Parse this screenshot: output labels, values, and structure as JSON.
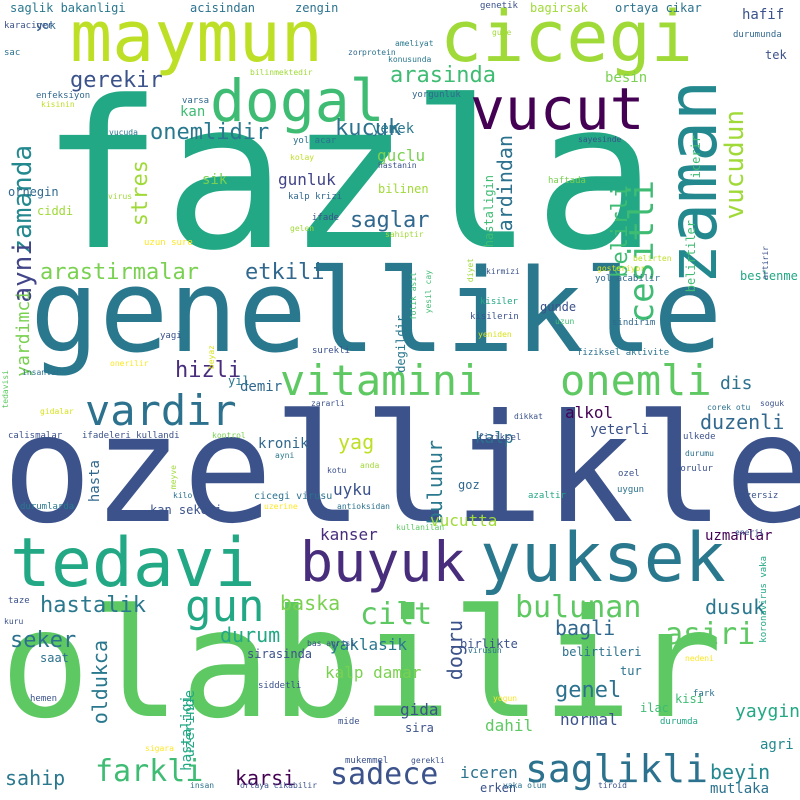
{
  "words": [
    {
      "text": "fazla",
      "color": "#22a884"
    },
    {
      "text": "ozellikle",
      "color": "#3b528b"
    },
    {
      "text": "olabilir",
      "color": "#5ec962"
    },
    {
      "text": "genellikle",
      "color": "#2a788e"
    },
    {
      "text": "maymun",
      "color": "#bddf26"
    },
    {
      "text": "cicegi",
      "color": "#a0da39"
    },
    {
      "text": "zaman",
      "color": "#23898e"
    },
    {
      "text": "vucut",
      "color": "#440154"
    },
    {
      "text": "dogal",
      "color": "#3fbc73"
    },
    {
      "text": "tedavi",
      "color": "#22a884"
    },
    {
      "text": "yuksek",
      "color": "#2a788e"
    },
    {
      "text": "buyuk",
      "color": "#472d7b"
    },
    {
      "text": "vitamini",
      "color": "#5ec962"
    },
    {
      "text": "onemli",
      "color": "#5ec962"
    },
    {
      "text": "vardir",
      "color": "#2c728e"
    },
    {
      "text": "gun",
      "color": "#22a884"
    },
    {
      "text": "saglikli",
      "color": "#2c728e"
    },
    {
      "text": "sadece",
      "color": "#3b528b"
    },
    {
      "text": "farkli",
      "color": "#3fbc73"
    },
    {
      "text": "bulunan",
      "color": "#5ec962"
    },
    {
      "text": "asiri",
      "color": "#5ec962"
    },
    {
      "text": "cesitli",
      "color": "#3fbc73"
    },
    {
      "text": "vucudun",
      "color": "#a0da39"
    },
    {
      "text": "zamanda",
      "color": "#23898e"
    },
    {
      "text": "ayni",
      "color": "#414487"
    },
    {
      "text": "arasinda",
      "color": "#3fbc73"
    },
    {
      "text": "gerekir",
      "color": "#3b528b"
    },
    {
      "text": "onemlidir",
      "color": "#2a788e"
    },
    {
      "text": "kucuk",
      "color": "#2c728e"
    },
    {
      "text": "saglar",
      "color": "#31688e"
    },
    {
      "text": "etkili",
      "color": "#31688e"
    },
    {
      "text": "arastirmalar",
      "color": "#7ad151"
    },
    {
      "text": "hizli",
      "color": "#472d7b"
    },
    {
      "text": "stres",
      "color": "#a0da39"
    },
    {
      "text": "belirli",
      "color": "#3fbc73"
    },
    {
      "text": "ardindan",
      "color": "#2c728e"
    },
    {
      "text": "yardimci",
      "color": "#7ad151"
    },
    {
      "text": "duzenli",
      "color": "#31688e"
    },
    {
      "text": "yag",
      "color": "#bddf26"
    },
    {
      "text": "bulunur",
      "color": "#2a788e"
    },
    {
      "text": "hastalik",
      "color": "#2a788e"
    },
    {
      "text": "seker",
      "color": "#2c728e"
    },
    {
      "text": "durum",
      "color": "#22a884"
    },
    {
      "text": "baska",
      "color": "#7ad151"
    },
    {
      "text": "cilt",
      "color": "#5ec962"
    },
    {
      "text": "dogru",
      "color": "#3b528b"
    },
    {
      "text": "bagli",
      "color": "#31688e"
    },
    {
      "text": "oldukca",
      "color": "#2a788e"
    },
    {
      "text": "genel",
      "color": "#2c728e"
    },
    {
      "text": "dusuk",
      "color": "#2a788e"
    },
    {
      "text": "sahip",
      "color": "#2a788e"
    },
    {
      "text": "karsi",
      "color": "#440154"
    },
    {
      "text": "beyin",
      "color": "#23898e"
    },
    {
      "text": "yaygin",
      "color": "#22a884"
    },
    {
      "text": "normal",
      "color": "#3b528b"
    },
    {
      "text": "iceren",
      "color": "#2c728e"
    },
    {
      "text": "dahil",
      "color": "#5ec962"
    },
    {
      "text": "gida",
      "color": "#3b528b"
    },
    {
      "text": "kalp damar",
      "color": "#7ad151"
    },
    {
      "text": "yaklasik",
      "color": "#2a788e"
    },
    {
      "text": "kanser",
      "color": "#472d7b"
    },
    {
      "text": "uyku",
      "color": "#3b528b"
    },
    {
      "text": "vucutta",
      "color": "#a0da39"
    },
    {
      "text": "kalp",
      "color": "#2c728e"
    },
    {
      "text": "alkol",
      "color": "#440154"
    },
    {
      "text": "dis",
      "color": "#2c728e"
    },
    {
      "text": "demir",
      "color": "#31688e"
    },
    {
      "text": "gunluk",
      "color": "#414487"
    },
    {
      "text": "guclu",
      "color": "#7ad151"
    },
    {
      "text": "sik",
      "color": "#7ad151"
    },
    {
      "text": "yemek",
      "color": "#2a788e"
    },
    {
      "text": "besin",
      "color": "#7ad151"
    },
    {
      "text": "kan",
      "color": "#3fbc73"
    },
    {
      "text": "hafif",
      "color": "#3b528b"
    },
    {
      "text": "uzmanlar",
      "color": "#440154"
    },
    {
      "text": "kronik",
      "color": "#31688e"
    },
    {
      "text": "hasta",
      "color": "#31688e"
    },
    {
      "text": "yeterli",
      "color": "#3b528b"
    },
    {
      "text": "agri",
      "color": "#23898e"
    },
    {
      "text": "mutlaka",
      "color": "#2c728e"
    },
    {
      "text": "erken",
      "color": "#3b528b"
    },
    {
      "text": "sira",
      "color": "#3b528b"
    },
    {
      "text": "hastaligi",
      "color": "#22a884"
    },
    {
      "text": "uzerinde",
      "color": "#22a884"
    },
    {
      "text": "kisi",
      "color": "#3fbc73"
    },
    {
      "text": "ilac",
      "color": "#3fbc73"
    },
    {
      "text": "tur",
      "color": "#2c728e"
    },
    {
      "text": "belirtileri",
      "color": "#2c728e"
    },
    {
      "text": "sirasinda",
      "color": "#3b528b"
    },
    {
      "text": "saat",
      "color": "#2c728e"
    },
    {
      "text": "birlikte",
      "color": "#3b528b"
    },
    {
      "text": "beslenme",
      "color": "#22a884"
    },
    {
      "text": "gunde",
      "color": "#3b528b"
    },
    {
      "text": "degildir",
      "color": "#2a788e"
    },
    {
      "text": "kan sekeri",
      "color": "#3b528b"
    },
    {
      "text": "kalp krizi",
      "color": "#31688e"
    },
    {
      "text": "hastaligin",
      "color": "#3fbc73"
    },
    {
      "text": "icerir",
      "color": "#3fbc73"
    },
    {
      "text": "belirtiler",
      "color": "#3fbc73"
    },
    {
      "text": "yil",
      "color": "#2a788e"
    },
    {
      "text": "goz",
      "color": "#31688e"
    },
    {
      "text": "tek",
      "color": "#3b528b"
    },
    {
      "text": "ornegin",
      "color": "#31688e"
    },
    {
      "text": "ciddi",
      "color": "#a0da39"
    },
    {
      "text": "bilinen",
      "color": "#a0da39"
    },
    {
      "text": "saglik bakanligi",
      "color": "#2a788e"
    },
    {
      "text": "acisindan",
      "color": "#2c728e"
    },
    {
      "text": "zengin",
      "color": "#2c728e"
    },
    {
      "text": "bagirsak",
      "color": "#a0da39"
    },
    {
      "text": "ortaya cikar",
      "color": "#2c728e"
    },
    {
      "text": "yok",
      "color": "#31688e"
    },
    {
      "text": "karaciger",
      "color": "#3b528b"
    },
    {
      "text": "genetik",
      "color": "#3b528b"
    },
    {
      "text": "gune",
      "color": "#a0da39"
    },
    {
      "text": "sac",
      "color": "#2c728e"
    },
    {
      "text": "zor",
      "color": "#31688e"
    },
    {
      "text": "protein",
      "color": "#2c728e"
    },
    {
      "text": "ameliyat",
      "color": "#2a788e"
    },
    {
      "text": "konusunda",
      "color": "#2a788e"
    },
    {
      "text": "durumunda",
      "color": "#31688e"
    },
    {
      "text": "bilinmektedir",
      "color": "#a0da39"
    },
    {
      "text": "enfeksiyon",
      "color": "#31688e"
    },
    {
      "text": "kisinin",
      "color": "#bddf26"
    },
    {
      "text": "yorgunluk",
      "color": "#31688e"
    },
    {
      "text": "varsa",
      "color": "#31688e"
    },
    {
      "text": "yol acar",
      "color": "#2c728e"
    },
    {
      "text": "vucuda",
      "color": "#2a788e"
    },
    {
      "text": "kolay",
      "color": "#bddf26"
    },
    {
      "text": "hastanin",
      "color": "#3b528b"
    },
    {
      "text": "sayesinde",
      "color": "#3b528b"
    },
    {
      "text": "haftada",
      "color": "#7ad151"
    },
    {
      "text": "virus",
      "color": "#a0da39"
    },
    {
      "text": "ifade",
      "color": "#3b528b"
    },
    {
      "text": "gelen",
      "color": "#a0da39"
    },
    {
      "text": "sahiptir",
      "color": "#a0da39"
    },
    {
      "text": "uzun sure",
      "color": "#fde725"
    },
    {
      "text": "diyet",
      "color": "#a0da39"
    },
    {
      "text": "belirten",
      "color": "#bddf26"
    },
    {
      "text": "kirmizi",
      "color": "#3b528b"
    },
    {
      "text": "yol acabilir",
      "color": "#31688e"
    },
    {
      "text": "gosteriyor",
      "color": "#d8e219"
    },
    {
      "text": "artirir",
      "color": "#3b528b"
    },
    {
      "text": "kisiler",
      "color": "#22a884"
    },
    {
      "text": "kisilerin",
      "color": "#3b528b"
    },
    {
      "text": "yesil cay",
      "color": "#3fbc73"
    },
    {
      "text": "folik asit",
      "color": "#3fbc73"
    },
    {
      "text": "yeniden",
      "color": "#d8e219"
    },
    {
      "text": "uzun",
      "color": "#3fbc73"
    },
    {
      "text": "sindirim",
      "color": "#31688e"
    },
    {
      "text": "yagi",
      "color": "#3b528b"
    },
    {
      "text": "surekli",
      "color": "#3b528b"
    },
    {
      "text": "beyaz",
      "color": "#d8e219"
    },
    {
      "text": "onerilir",
      "color": "#fde725"
    },
    {
      "text": "fiziksel aktivite",
      "color": "#2c728e"
    },
    {
      "text": "tedavisi",
      "color": "#5ec962"
    },
    {
      "text": "insanlar",
      "color": "#2c728e"
    },
    {
      "text": "gidalar",
      "color": "#d8e219"
    },
    {
      "text": "zararli",
      "color": "#3b528b"
    },
    {
      "text": "dikkat",
      "color": "#3b528b"
    },
    {
      "text": "corek otu",
      "color": "#2c728e"
    },
    {
      "text": "soguk",
      "color": "#3b528b"
    },
    {
      "text": "calismalar",
      "color": "#3b528b"
    },
    {
      "text": "ifadeleri kullandi",
      "color": "#3b528b"
    },
    {
      "text": "kontrol",
      "color": "#7ad151"
    },
    {
      "text": "fiziksel",
      "color": "#3b528b"
    },
    {
      "text": "ulkede",
      "color": "#3b528b"
    },
    {
      "text": "durumu",
      "color": "#2c728e"
    },
    {
      "text": "ayni",
      "color": "#2a788e"
    },
    {
      "text": "meyve",
      "color": "#a0da39"
    },
    {
      "text": "anda",
      "color": "#a0da39"
    },
    {
      "text": "kotu",
      "color": "#3b528b"
    },
    {
      "text": "gorulur",
      "color": "#3b528b"
    },
    {
      "text": "kilo",
      "color": "#2c728e"
    },
    {
      "text": "ozel",
      "color": "#3b528b"
    },
    {
      "text": "uygun",
      "color": "#2c728e"
    },
    {
      "text": "cicegi virusu",
      "color": "#2c728e"
    },
    {
      "text": "azaltir",
      "color": "#22a884"
    },
    {
      "text": "egzersiz",
      "color": "#3b528b"
    },
    {
      "text": "durumlarda",
      "color": "#2a788e"
    },
    {
      "text": "uzerine",
      "color": "#fde725"
    },
    {
      "text": "antioksidan",
      "color": "#2c728e"
    },
    {
      "text": "kullanilan",
      "color": "#5ec962"
    },
    {
      "text": "enerji",
      "color": "#3b528b"
    },
    {
      "text": "koronavirus vaka",
      "color": "#22a884"
    },
    {
      "text": "taze",
      "color": "#3b528b"
    },
    {
      "text": "kuru",
      "color": "#3b528b"
    },
    {
      "text": "bas agrisi",
      "color": "#3b528b"
    },
    {
      "text": "virusun",
      "color": "#2c728e"
    },
    {
      "text": "nedeni",
      "color": "#fde725"
    },
    {
      "text": "siddetli",
      "color": "#3b528b"
    },
    {
      "text": "hemen",
      "color": "#3b528b"
    },
    {
      "text": "yogun",
      "color": "#fde725"
    },
    {
      "text": "fark",
      "color": "#2c728e"
    },
    {
      "text": "mide",
      "color": "#3b528b"
    },
    {
      "text": "durumda",
      "color": "#22a884"
    },
    {
      "text": "sigara",
      "color": "#fde725"
    },
    {
      "text": "mukemmel",
      "color": "#3b528b"
    },
    {
      "text": "gerekli",
      "color": "#3b528b"
    },
    {
      "text": "insan",
      "color": "#2c728e"
    },
    {
      "text": "ortaya cikabilir",
      "color": "#3b528b"
    },
    {
      "text": "vaka olum",
      "color": "#2c728e"
    },
    {
      "text": "tiroid",
      "color": "#3b528b"
    }
  ]
}
